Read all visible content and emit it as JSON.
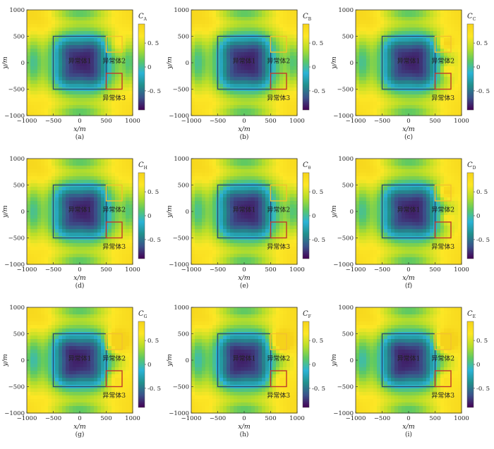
{
  "figure": {
    "axes": {
      "xlabel": "x/m",
      "ylabel": "y/m",
      "xlim": [
        -1000,
        1000
      ],
      "ylim": [
        -1000,
        1000
      ],
      "xticks": [
        -1000,
        -500,
        0,
        500,
        1000
      ],
      "yticks": [
        -1000,
        -500,
        0,
        500,
        1000
      ]
    },
    "colorbar": {
      "ticks": [
        0.5,
        0,
        -0.5
      ],
      "tick_labels": [
        "0. 5",
        "0",
        "-0. 5"
      ],
      "range": [
        -0.9,
        0.9
      ]
    },
    "colormap": [
      "#440154",
      "#3b528b",
      "#21908c",
      "#2bb3d6",
      "#5dc963",
      "#b8de29",
      "#fde725",
      "#f5d31b"
    ],
    "anomaly_labels": {
      "body1": "异常体1",
      "body2": "异常体2",
      "body3": "异常体3"
    },
    "box_colors": {
      "body1": "#2c4a6e",
      "body2": "#f2c12e",
      "body3": "#c0392b"
    }
  },
  "chart_data": [
    {
      "type": "heatmap",
      "panel_label": "(a)",
      "coef_main": "C",
      "coef_sub": "A",
      "variant": 0
    },
    {
      "type": "heatmap",
      "panel_label": "(b)",
      "coef_main": "C",
      "coef_sub": "B",
      "variant": 1
    },
    {
      "type": "heatmap",
      "panel_label": "(c)",
      "coef_main": "C",
      "coef_sub": "C",
      "variant": 2
    },
    {
      "type": "heatmap",
      "panel_label": "(d)",
      "coef_main": "C",
      "coef_sub": "H",
      "variant": 1
    },
    {
      "type": "heatmap",
      "panel_label": "(e)",
      "coef_main": "C",
      "coef_sub": "θ",
      "variant": 1
    },
    {
      "type": "heatmap",
      "panel_label": "(f)",
      "coef_main": "C",
      "coef_sub": "D",
      "variant": 2
    },
    {
      "type": "heatmap",
      "panel_label": "(g)",
      "coef_main": "C",
      "coef_sub": "G",
      "variant": 3
    },
    {
      "type": "heatmap",
      "panel_label": "(h)",
      "coef_main": "C",
      "coef_sub": "F",
      "variant": 3
    },
    {
      "type": "heatmap",
      "panel_label": "(i)",
      "coef_main": "C",
      "coef_sub": "E",
      "variant": 3
    }
  ],
  "anomaly_boxes": {
    "body1": {
      "x": [
        -500,
        500
      ],
      "y": [
        -500,
        500
      ]
    },
    "body2": {
      "x": [
        500,
        800
      ],
      "y": [
        200,
        500
      ]
    },
    "body3": {
      "x": [
        500,
        800
      ],
      "y": [
        -500,
        -200
      ]
    }
  }
}
